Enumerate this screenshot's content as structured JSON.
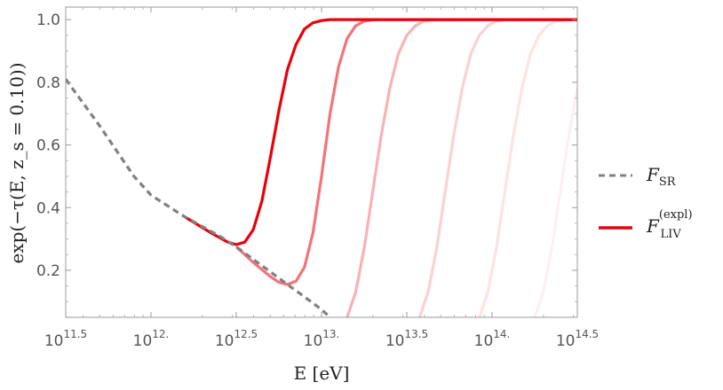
{
  "chart_data": {
    "type": "line",
    "xlabel": "E [eV]",
    "ylabel": "exp(−τ(E, z_s = 0.10))",
    "x_scale": "log10",
    "xlim": [
      316227766016.8,
      316227766016837.9
    ],
    "ylim": [
      0.05,
      1.04
    ],
    "x_ticks": [
      {
        "base": "10",
        "exp": "11.5",
        "value": 316227766016.8
      },
      {
        "base": "10",
        "exp": "12.",
        "value": 1000000000000
      },
      {
        "base": "10",
        "exp": "12.5",
        "value": 3162277660168.4
      },
      {
        "base": "10",
        "exp": "13.",
        "value": 10000000000000
      },
      {
        "base": "10",
        "exp": "13.5",
        "value": 31622776601683.8
      },
      {
        "base": "10",
        "exp": "14.",
        "value": 100000000000000
      },
      {
        "base": "10",
        "exp": "14.5",
        "value": 316227766016837.9
      }
    ],
    "y_ticks": [
      "0.2",
      "0.4",
      "0.6",
      "0.8",
      "1.0"
    ],
    "y_tick_values": [
      0.2,
      0.4,
      0.6,
      0.8,
      1.0
    ],
    "grid": false,
    "legend_position": "right",
    "colors": {
      "sr": "#808080",
      "liv": "#e8000b"
    },
    "legend": [
      {
        "symbol": "F",
        "sub": "SR",
        "sup": "",
        "style": "dashed",
        "color": "#808080"
      },
      {
        "symbol": "F",
        "sub": "LIV",
        "sup": "(expl)",
        "style": "solid",
        "color": "#e8000b"
      }
    ],
    "sr_series": {
      "name": "F_SR",
      "x": [
        316227766016.8,
        501187233627.3,
        794328234724.3,
        1000000000000,
        1584893192461.1,
        2511886431509.6,
        3162277660168.4,
        3981071705534.9,
        5011872336272.7,
        6309573444801.9,
        7943282347242.8,
        10000000000000,
        11220184543019.6
      ],
      "y": [
        0.81,
        0.66,
        0.5,
        0.44,
        0.37,
        0.31,
        0.275,
        0.235,
        0.195,
        0.155,
        0.115,
        0.075,
        0.05
      ]
    },
    "liv_series": [
      {
        "opacity": 1.0,
        "x": [
          1584893192461.1,
          2238721138568.3,
          2818382931264.5,
          3162277660168.4,
          3548133892335.8,
          3981071705534.9,
          4466835921509.6,
          5011872336272.7,
          5623413251903.5,
          6309573444801.9,
          7079457843841.4,
          7943282347242.8,
          8912509381337.5,
          10000000000000,
          11220184543019.6,
          12589254117941.7,
          14125375446227.5,
          15848931924611.1,
          316227766016837.9
        ],
        "y": [
          0.37,
          0.32,
          0.29,
          0.282,
          0.29,
          0.33,
          0.42,
          0.56,
          0.71,
          0.84,
          0.92,
          0.97,
          0.99,
          0.997,
          1.0,
          1.0,
          1.0,
          1.0,
          1.0
        ]
      },
      {
        "opacity": 0.55,
        "x": [
          3162277660168.4,
          3981071705534.9,
          5011872336272.7,
          5623413251903.5,
          6309573444801.9,
          7079457843841.4,
          7943282347242.8,
          8912509381337.5,
          10000000000000,
          11220184543019.6,
          12589254117941.7,
          14125375446227.5,
          15848931924611.1,
          17782794100389.2,
          19952623149688.8,
          22387211385683.4,
          25118864315095.8,
          316227766016837.9
        ],
        "y": [
          0.275,
          0.225,
          0.18,
          0.162,
          0.155,
          0.165,
          0.21,
          0.32,
          0.5,
          0.7,
          0.85,
          0.94,
          0.98,
          0.995,
          0.999,
          1.0,
          1.0,
          1.0
        ]
      },
      {
        "opacity": 0.3,
        "x": [
          14125375446227.5,
          15848931924611.1,
          17782794100389.2,
          19952623149688.8,
          22387211385683.4,
          25118864315095.8,
          28183829312644.5,
          31622776601683.8,
          35481338923357.5,
          39810717055349.7,
          44668359215096.3,
          50118723362727.2,
          56234132519034.9,
          316227766016837.9
        ],
        "y": [
          0.05,
          0.13,
          0.27,
          0.45,
          0.63,
          0.78,
          0.89,
          0.95,
          0.98,
          0.995,
          0.999,
          1.0,
          1.0,
          1.0
        ]
      },
      {
        "opacity": 0.18,
        "x": [
          37583740428844.4,
          42169650342858.2,
          47315125896148.1,
          53088444423098.8,
          59566214352901.1,
          66834391756861.4,
          74989420933245.6,
          84139514164519.4,
          94406087628592.3,
          105925372517728.9,
          118850222743702.5,
          133352143216332.4,
          149623565609604.5,
          316227766016837.9
        ],
        "y": [
          0.05,
          0.13,
          0.27,
          0.45,
          0.63,
          0.78,
          0.89,
          0.95,
          0.98,
          0.995,
          0.999,
          1.0,
          1.0,
          1.0
        ]
      },
      {
        "opacity": 0.11,
        "x": [
          84139514164519.4,
          94406087628592.3,
          105925372517728.9,
          118850222743702.5,
          133352143216332.4,
          149623565609604.5,
          167880401812256.2,
          188364908948843.6,
          211348903983498.5,
          237137370566165.7,
          266072505979881.5,
          298538261891796.6,
          316227766016837.9
        ],
        "y": [
          0.05,
          0.13,
          0.27,
          0.45,
          0.63,
          0.78,
          0.89,
          0.95,
          0.98,
          0.995,
          0.999,
          1.0,
          1.0
        ]
      },
      {
        "opacity": 0.06,
        "x": [
          177827941003892.2,
          199526231496887.9,
          223872113856834.0,
          251188643150958.0,
          281838293126445.5,
          316227766016837.9
        ],
        "y": [
          0.05,
          0.13,
          0.27,
          0.45,
          0.63,
          0.78
        ]
      }
    ]
  }
}
